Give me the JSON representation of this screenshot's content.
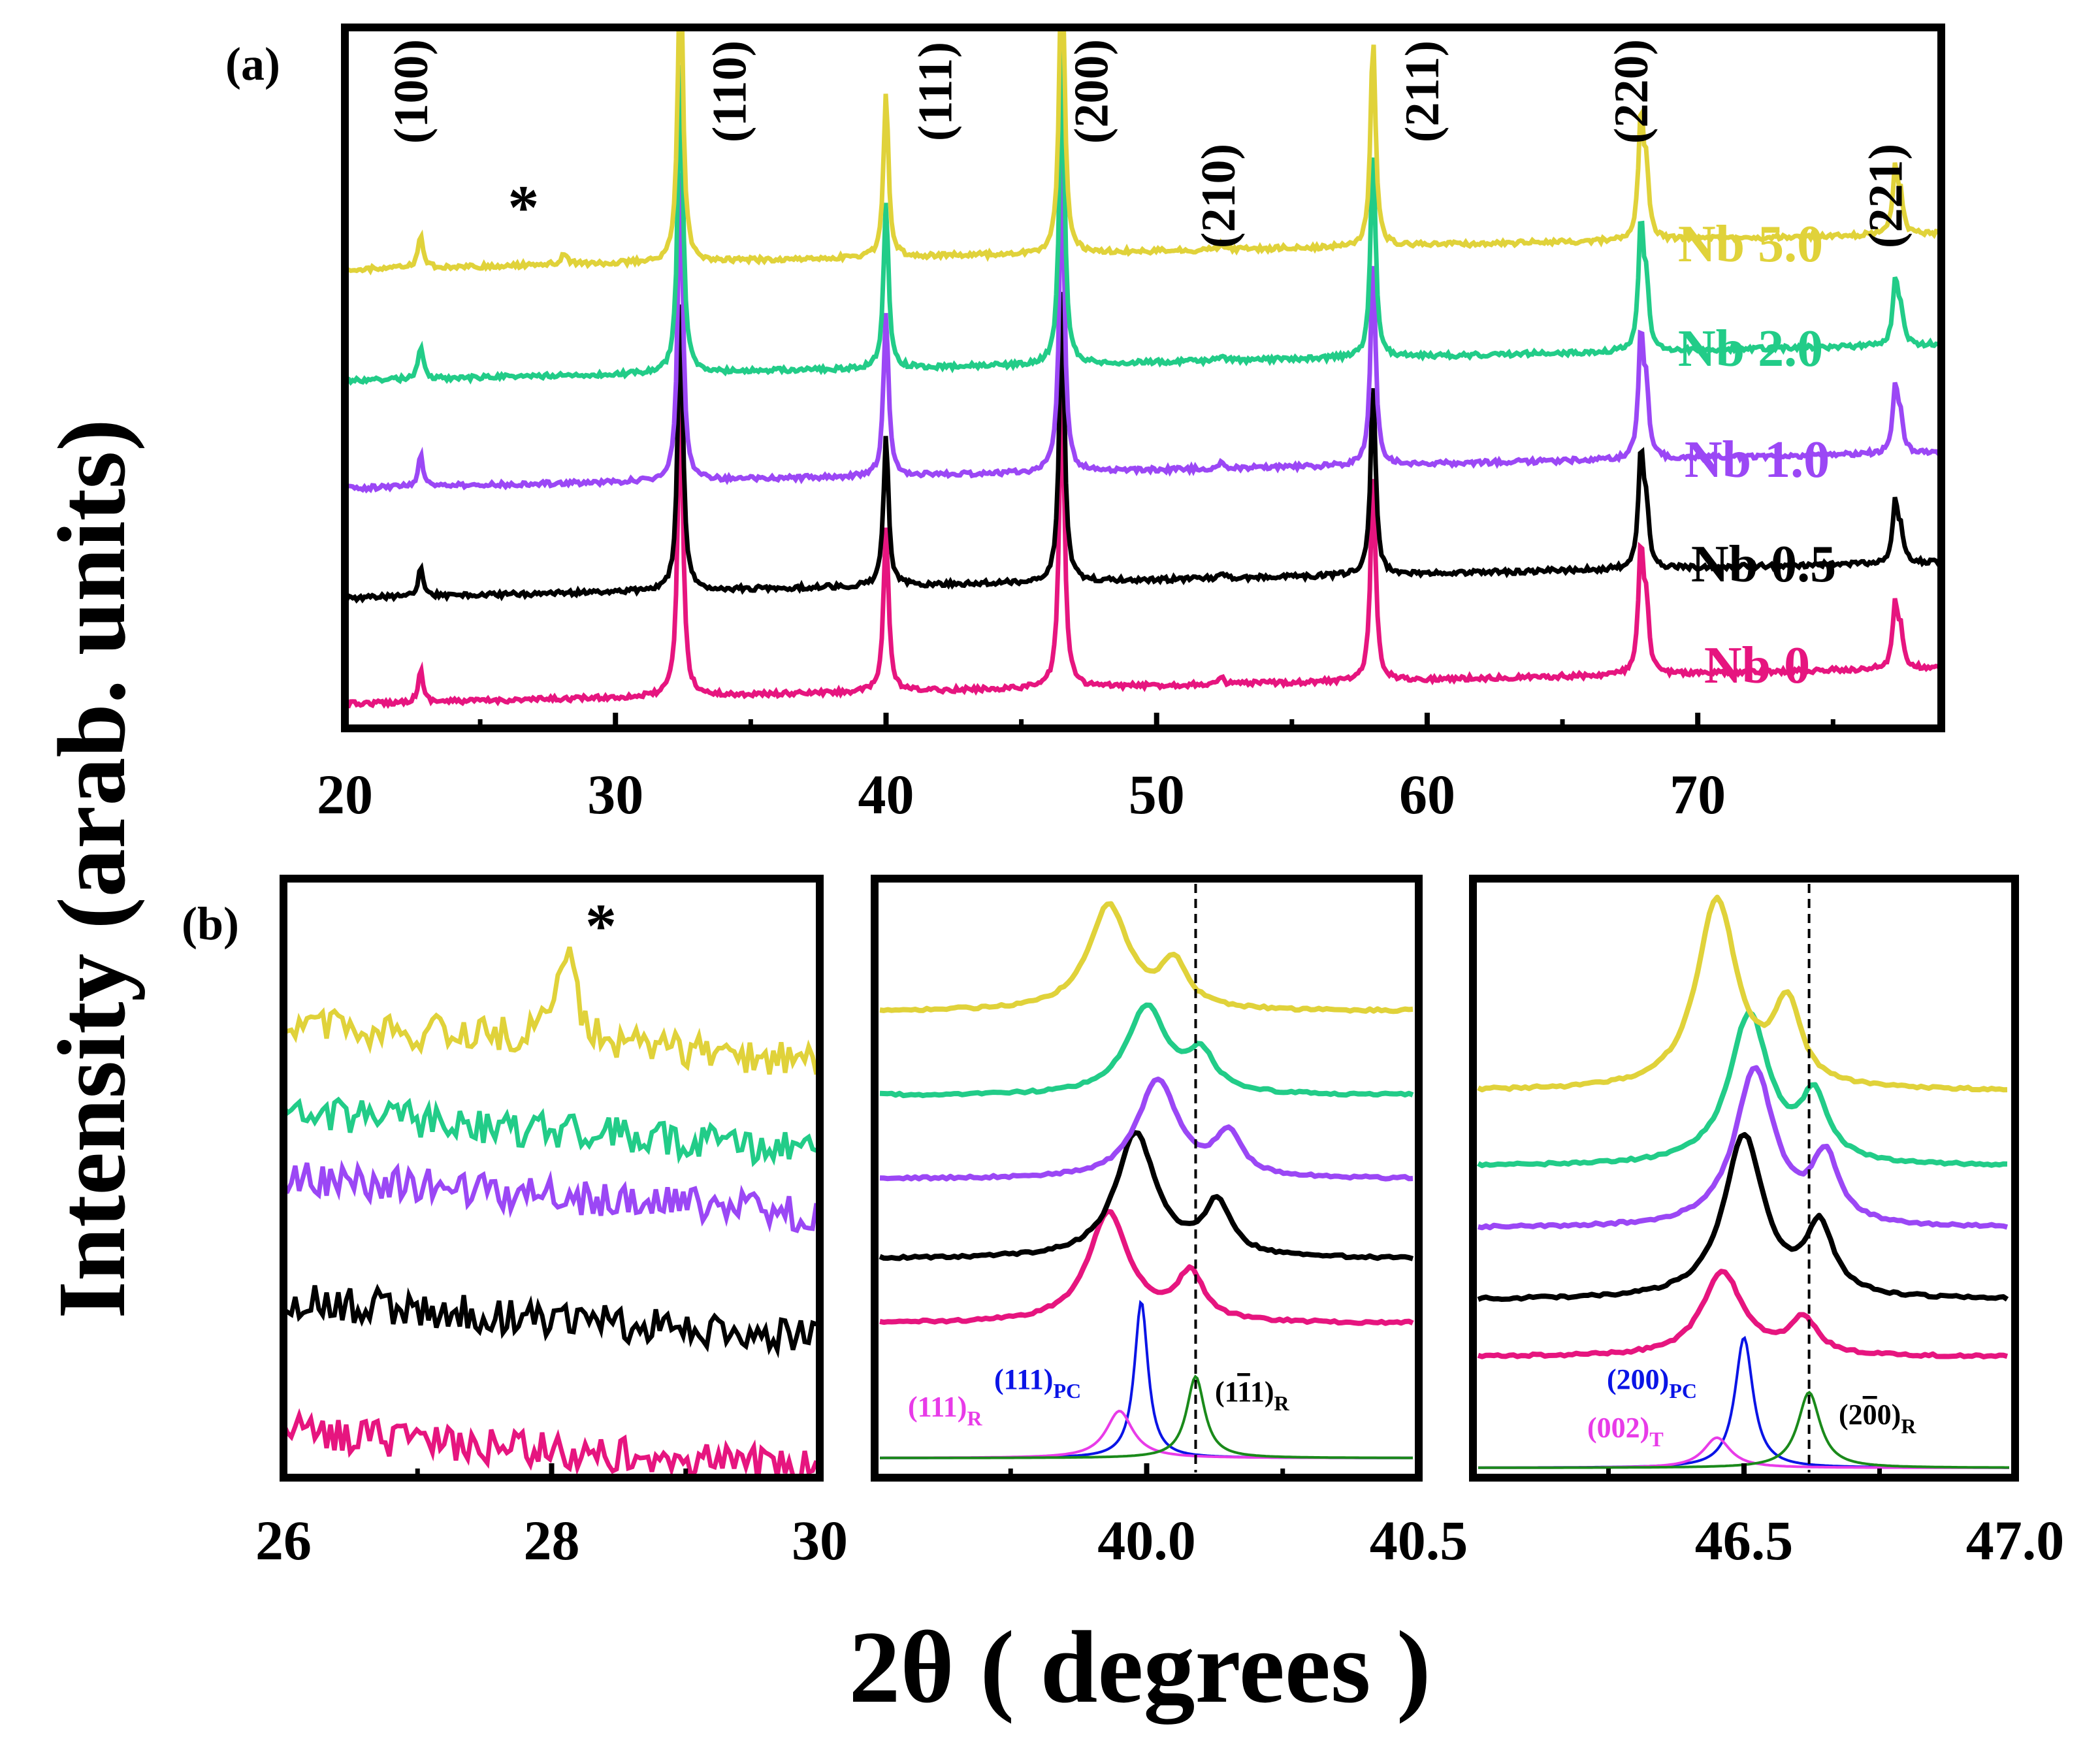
{
  "figure": {
    "ylabel": "Intensity (arab. units)",
    "xlabel": "2θ ( degrees )"
  },
  "colors": {
    "Nb 0": "#e6157f",
    "Nb 0.5": "#000000",
    "Nb 1.0": "#9b47f5",
    "Nb 2.0": "#22cc88",
    "Nb 5.0": "#e0d23a",
    "pc": "#0a14e6",
    "r": "#e83be8",
    "green": "#1a8a1a"
  },
  "chart_data": [
    {
      "type": "line",
      "panel": "(a)",
      "xlim": [
        20,
        79
      ],
      "xticks": [
        "20",
        "30",
        "40",
        "50",
        "60",
        "70"
      ],
      "xtick_values": [
        20,
        30,
        40,
        50,
        60,
        70
      ],
      "minor_ticks": [
        25,
        35,
        45,
        55,
        65,
        75
      ],
      "series_order": [
        "Nb 0",
        "Nb 0.5",
        "Nb 1.0",
        "Nb 2.0",
        "Nb 5.0"
      ],
      "series_labels": [
        "Nb 0",
        "Nb 0.5",
        "Nb 1.0",
        "Nb 2.0",
        "Nb 5.0"
      ],
      "peak_labels": [
        "(100)",
        "(110)",
        "(111)",
        "(200)",
        "(210)",
        "(211)",
        "(220)",
        "(221)"
      ],
      "peak_positions": [
        22.8,
        32.4,
        40.0,
        46.5,
        52.4,
        58.0,
        67.9,
        77.3
      ],
      "peak_heights": [
        0.22,
        2.2,
        1.15,
        2.2,
        0.04,
        1.45,
        0.85,
        0.45
      ],
      "impurity_marker": "*",
      "impurity_position": 28.1
    },
    {
      "type": "line",
      "panel": "(b) left",
      "xlim": [
        26,
        30
      ],
      "xticks": [
        "26",
        "28",
        "30"
      ],
      "xtick_values": [
        26,
        28,
        30
      ],
      "series_order": [
        "Nb 0",
        "Nb 0.5",
        "Nb 1.0",
        "Nb 2.0",
        "Nb 5.0"
      ],
      "impurity_marker": "*",
      "impurity_position": 28.1
    },
    {
      "type": "line",
      "panel": "(b) middle",
      "xlim": [
        39.5,
        40.5
      ],
      "xticks": [
        "40.0",
        "40.5"
      ],
      "xtick_values": [
        40.0,
        40.5
      ],
      "minor_ticks": [
        39.75,
        40.25
      ],
      "dashed_line_at": 40.09,
      "series_order": [
        "Nb 0",
        "Nb 0.5",
        "Nb 1.0",
        "Nb 2.0",
        "Nb 5.0"
      ],
      "peak_main": [
        39.93,
        39.98,
        40.02,
        40.0,
        39.93
      ],
      "peak_second": [
        40.08,
        40.13,
        40.15,
        40.1,
        40.05
      ],
      "fits": [
        {
          "name": "(111)_PC",
          "center": 39.99,
          "height": 1.0,
          "width": 0.015
        },
        {
          "name": "(111)_R",
          "center": 39.95,
          "height": 0.3,
          "width": 0.03
        },
        {
          "name": "(1-11)_R",
          "center": 40.09,
          "height": 0.52,
          "width": 0.02
        }
      ]
    },
    {
      "type": "line",
      "panel": "(b) right",
      "xlim": [
        46.0,
        47.0
      ],
      "xticks": [
        "46.5",
        "47.0"
      ],
      "xtick_values": [
        46.5,
        47.0
      ],
      "minor_ticks": [
        46.25,
        46.75
      ],
      "dashed_line_at": 46.62,
      "series_order": [
        "Nb 0",
        "Nb 0.5",
        "Nb 1.0",
        "Nb 2.0",
        "Nb 5.0"
      ],
      "peak_main": [
        46.46,
        46.5,
        46.52,
        46.51,
        46.45
      ],
      "peak_second": [
        46.61,
        46.64,
        46.65,
        46.63,
        46.58
      ],
      "fits": [
        {
          "name": "(200)_PC",
          "center": 46.5,
          "height": 0.95,
          "width": 0.02
        },
        {
          "name": "(002)_T",
          "center": 46.45,
          "height": 0.22,
          "width": 0.03
        },
        {
          "name": "(2-00)_R",
          "center": 46.62,
          "height": 0.55,
          "width": 0.025
        }
      ]
    }
  ],
  "panels": {
    "a_label": "(a)",
    "b_label": "(b)",
    "star": "*"
  },
  "annotations": {
    "pc111_main": "(111)",
    "pc111_sub": "PC",
    "r111_main": "(111)",
    "r111_sub": "R",
    "r1m11_pre": "(1",
    "r1m11_bar": "1",
    "r1m11_post": "1)",
    "r1m11_sub": "R",
    "pc200_main": "(200)",
    "pc200_sub": "PC",
    "t002_main": "(002)",
    "t002_sub": "T",
    "r2m00_pre": "(2",
    "r2m00_bar": "0",
    "r2m00_post": "0)",
    "r2m00_sub": "R"
  }
}
